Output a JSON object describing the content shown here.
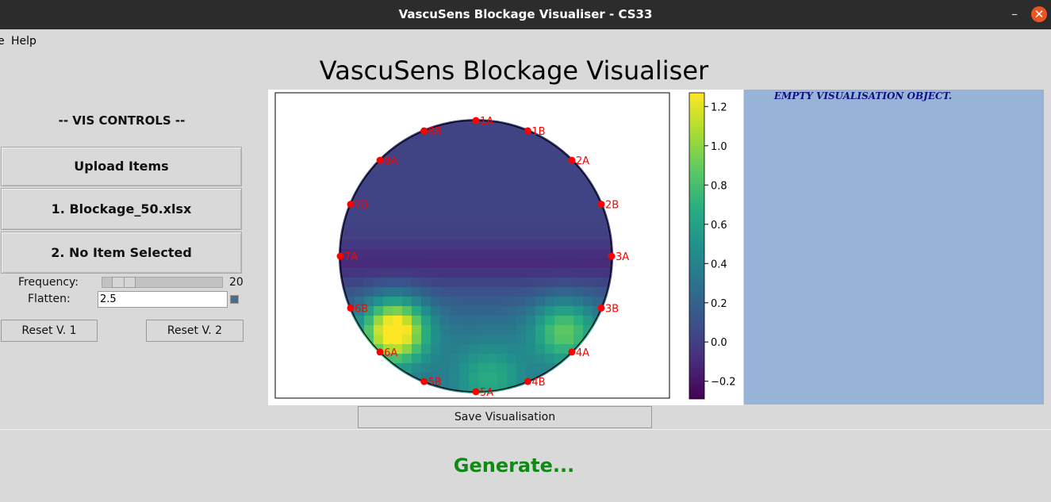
{
  "window": {
    "title": "VascuSens Blockage Visualiser - CS33",
    "minimize_glyph": "–",
    "close_glyph": "✕"
  },
  "menu": {
    "items": [
      "e",
      "Help"
    ]
  },
  "app_title": "VascuSens Blockage Visualiser",
  "controls": {
    "header": "-- VIS CONTROLS --",
    "upload_label": "Upload Items",
    "item1_label": "1. Blockage_50.xlsx",
    "item2_label": "2. No Item Selected",
    "frequency_label": "Frequency:",
    "frequency_value": "20",
    "frequency_slider_fraction": 0.1,
    "flatten_label": "Flatten:",
    "flatten_value": "2.5",
    "reset1_label": "Reset V. 1",
    "reset2_label": "Reset V. 2"
  },
  "visualisation": {
    "sensor_labels": [
      "1A",
      "1B",
      "2A",
      "2B",
      "3A",
      "3B",
      "4A",
      "4B",
      "5A",
      "5B",
      "6A",
      "6B",
      "7A",
      "7B",
      "8A",
      "8B"
    ],
    "marker_color": "#ff0000",
    "colormap": "viridis",
    "colorbar_ticks": [
      "1.2",
      "1.0",
      "0.8",
      "0.6",
      "0.4",
      "0.2",
      "0.0",
      "−0.2"
    ],
    "colorbar_range": [
      -0.29,
      1.27
    ]
  },
  "right_panel": {
    "text": "EMPTY VISUALISATION OBJECT.",
    "color": "#97b3d5"
  },
  "save_label": "Save Visualisation",
  "generate_label": "Generate...",
  "colors": {
    "generate": "#0f8a14",
    "titlebar": "#2c2c2c",
    "close_button": "#e95420"
  }
}
